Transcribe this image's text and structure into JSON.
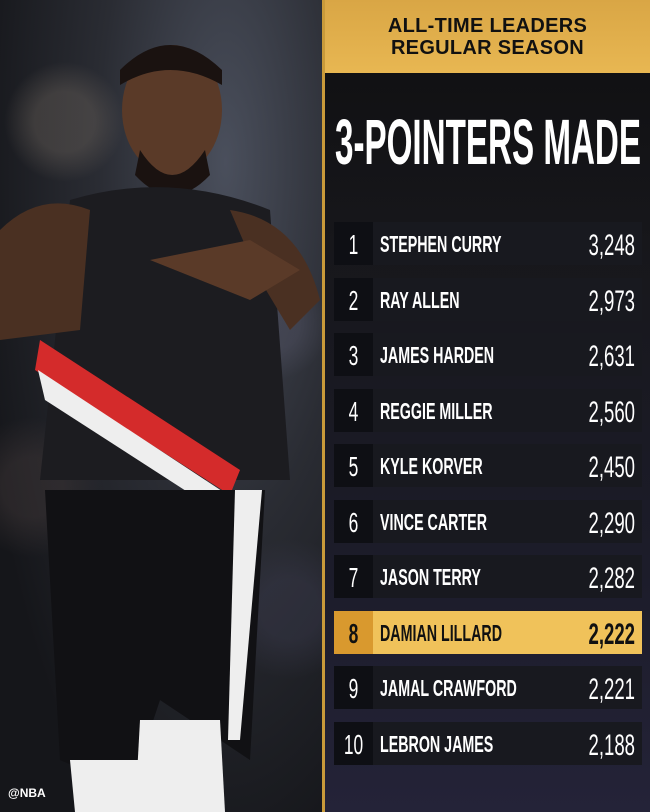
{
  "watermark": "@NBA",
  "header": {
    "line1": "ALL-TIME LEADERS",
    "line2": "REGULAR SEASON"
  },
  "title": "3-POINTERS MADE",
  "colors": {
    "gold": "#e8b752",
    "highlight": "#f0c25a",
    "row": "#18191f"
  },
  "leaders": [
    {
      "rank": "1",
      "name": "STEPHEN CURRY",
      "value": "3,248"
    },
    {
      "rank": "2",
      "name": "RAY ALLEN",
      "value": "2,973"
    },
    {
      "rank": "3",
      "name": "JAMES HARDEN",
      "value": "2,631"
    },
    {
      "rank": "4",
      "name": "REGGIE MILLER",
      "value": "2,560"
    },
    {
      "rank": "5",
      "name": "KYLE KORVER",
      "value": "2,450"
    },
    {
      "rank": "6",
      "name": "VINCE CARTER",
      "value": "2,290"
    },
    {
      "rank": "7",
      "name": "JASON TERRY",
      "value": "2,282"
    },
    {
      "rank": "8",
      "name": "DAMIAN LILLARD",
      "value": "2,222",
      "highlighted": true
    },
    {
      "rank": "9",
      "name": "JAMAL CRAWFORD",
      "value": "2,221"
    },
    {
      "rank": "10",
      "name": "LEBRON JAMES",
      "value": "2,188"
    }
  ]
}
